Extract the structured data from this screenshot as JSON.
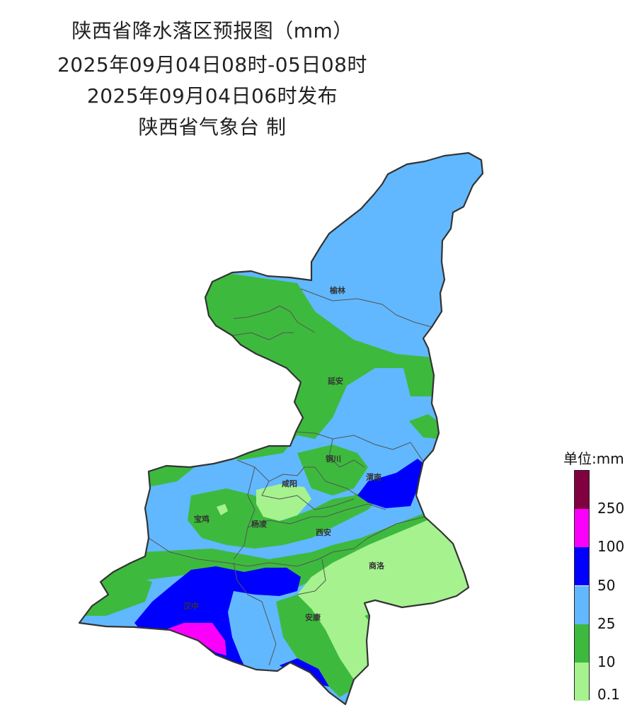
{
  "title": {
    "line1": "陕西省降水落区预报图（mm）",
    "line2": "2025年09月04日08时-05日08时",
    "line3": "2025年09月04日06时发布",
    "line4": "陕西省气象台 制"
  },
  "legend": {
    "title": "单位:mm",
    "classes": [
      {
        "label": "0.1",
        "color": "#a6f28f"
      },
      {
        "label": "10",
        "color": "#3dba3d"
      },
      {
        "label": "25",
        "color": "#61b8ff"
      },
      {
        "label": "50",
        "color": "#0000ff"
      },
      {
        "label": "100",
        "color": "#fa00fa"
      },
      {
        "label": "250",
        "color": "#800040"
      }
    ]
  },
  "cities": [
    {
      "id": "yulin",
      "label": "榆林"
    },
    {
      "id": "yanan",
      "label": "延安"
    },
    {
      "id": "tongchuan",
      "label": "铜川"
    },
    {
      "id": "weinan",
      "label": "渭南"
    },
    {
      "id": "xianyang",
      "label": "咸阳"
    },
    {
      "id": "baoji",
      "label": "宝鸡"
    },
    {
      "id": "yangling",
      "label": "杨凌"
    },
    {
      "id": "xian",
      "label": "西安"
    },
    {
      "id": "shangluo",
      "label": "商洛"
    },
    {
      "id": "hanzhong",
      "label": "汉中"
    },
    {
      "id": "ankang",
      "label": "安康"
    }
  ]
}
